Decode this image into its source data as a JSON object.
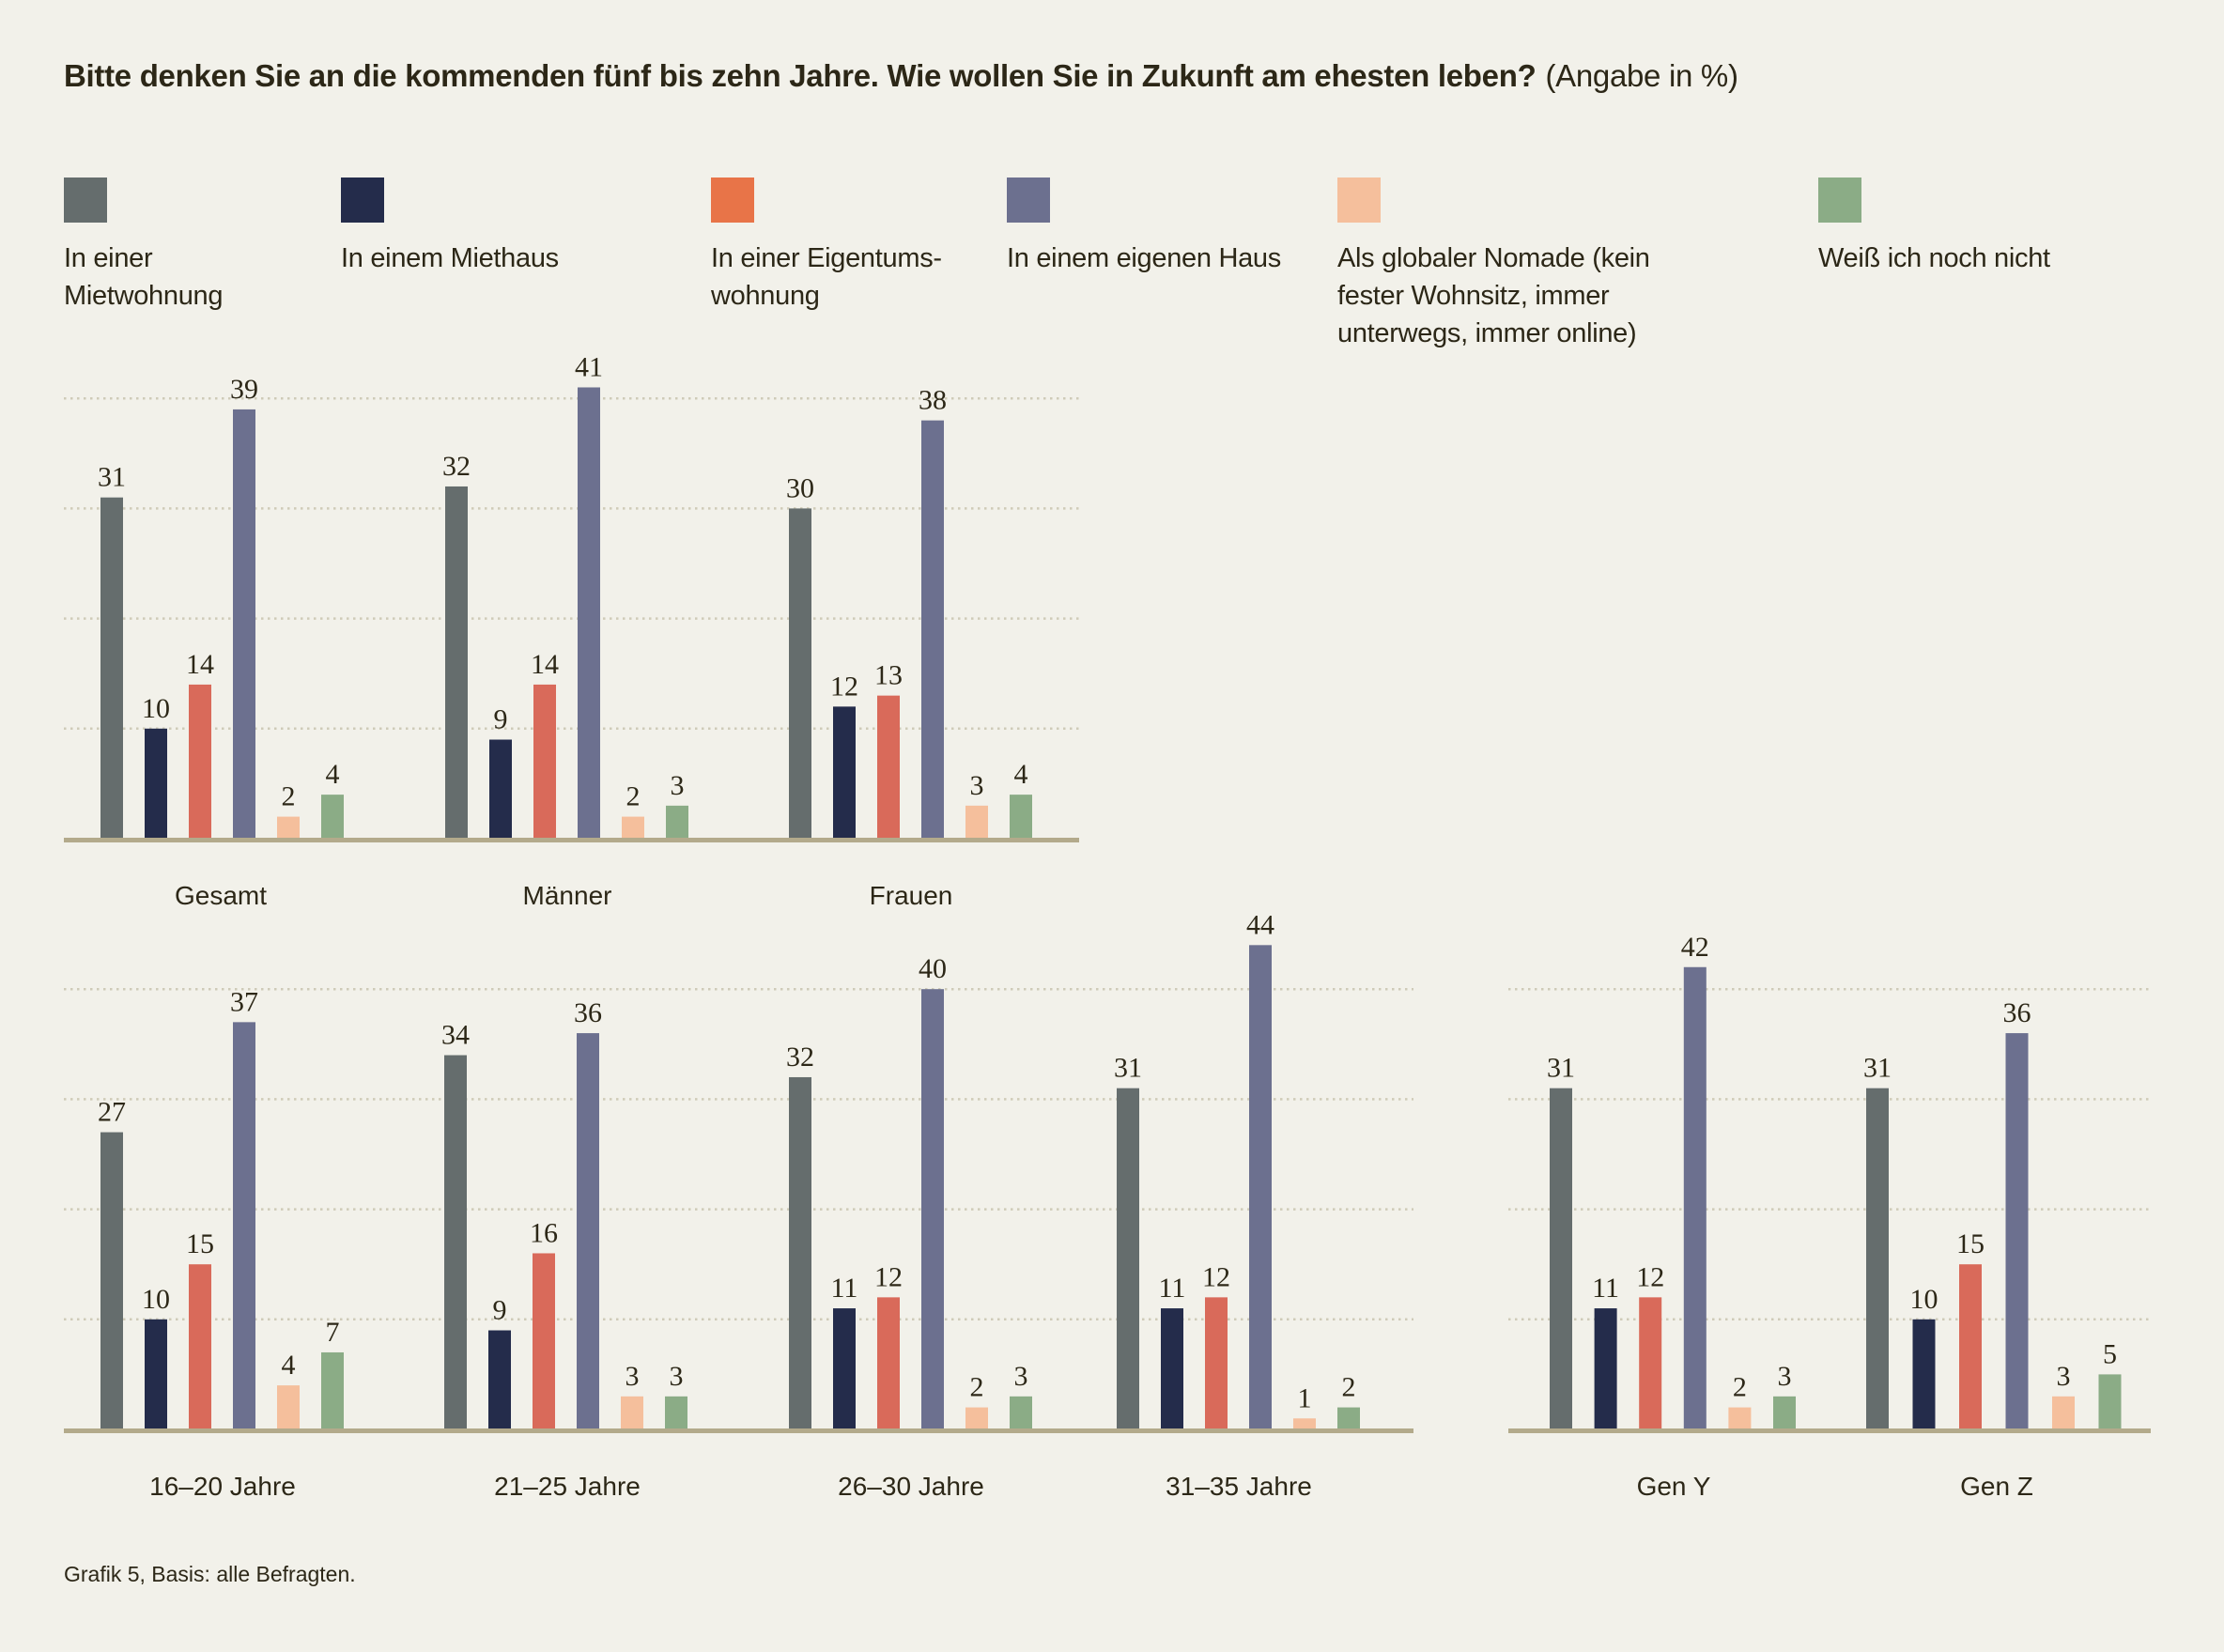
{
  "title": {
    "question": "Bitte denken Sie an die kommenden fünf bis zehn Jahre. Wie wollen Sie in Zukunft am ehesten leben?",
    "unit": "(Angabe in %)"
  },
  "legend": [
    {
      "label": "In einer\nMietwohnung",
      "color": "#656d6d"
    },
    {
      "label": "In einem Miethaus",
      "color": "#242c4b"
    },
    {
      "label": "In einer Eigentums-\nwohnung",
      "color": "#e87448"
    },
    {
      "label": "In einem eigenen Haus",
      "color": "#6c708f"
    },
    {
      "label": "Als globaler Nomade (kein\nfester Wohnsitz, immer\nunterwegs, immer online)",
      "color": "#f5bf9c"
    },
    {
      "label": "Weiß ich noch nicht",
      "color": "#8bac86"
    }
  ],
  "footnote": "Grafik 5, Basis: alle Befragten.",
  "chart_data": {
    "type": "bar",
    "title": "Bitte denken Sie an die kommenden fünf bis zehn Jahre. Wie wollen Sie in Zukunft am ehesten leben? (Angabe in %)",
    "ylabel": "%",
    "ylim": [
      0,
      45
    ],
    "grid": true,
    "gridlines": [
      10,
      20,
      30,
      40
    ],
    "legend_position": "top",
    "series_names": [
      "In einer Mietwohnung",
      "In einem Miethaus",
      "In einer Eigentumswohnung",
      "In einem eigenen Haus",
      "Als globaler Nomade (kein fester Wohnsitz, immer unterwegs, immer online)",
      "Weiß ich noch nicht"
    ],
    "bar_colors": [
      "#656d6d",
      "#242c4b",
      "#d96a5a",
      "#6c708f",
      "#f5bf9c",
      "#8bac86"
    ],
    "panels": [
      {
        "name": "gender",
        "categories": [
          "Gesamt",
          "Männer",
          "Frauen"
        ],
        "values": [
          [
            31,
            10,
            14,
            39,
            2,
            4
          ],
          [
            32,
            9,
            14,
            41,
            2,
            3
          ],
          [
            30,
            12,
            13,
            38,
            3,
            4
          ]
        ]
      },
      {
        "name": "age",
        "categories": [
          "16–20 Jahre",
          "21–25 Jahre",
          "26–30 Jahre",
          "31–35 Jahre"
        ],
        "values": [
          [
            27,
            10,
            15,
            37,
            4,
            7
          ],
          [
            34,
            9,
            16,
            36,
            3,
            3
          ],
          [
            32,
            11,
            12,
            40,
            2,
            3
          ],
          [
            31,
            11,
            12,
            44,
            1,
            2
          ]
        ]
      },
      {
        "name": "generation",
        "categories": [
          "Gen Y",
          "Gen Z"
        ],
        "values": [
          [
            31,
            11,
            12,
            42,
            2,
            3
          ],
          [
            31,
            10,
            15,
            36,
            3,
            5
          ]
        ]
      }
    ]
  }
}
